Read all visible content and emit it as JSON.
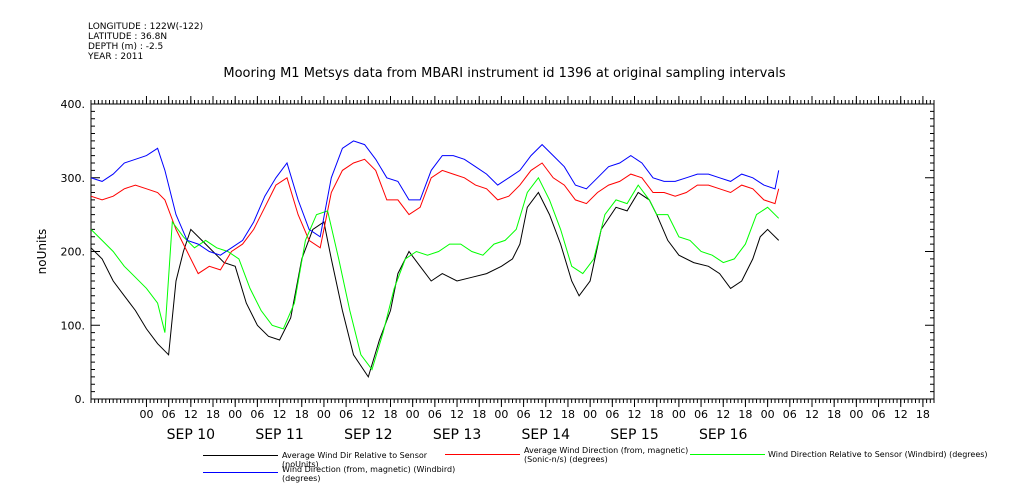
{
  "meta": {
    "longitude": "LONGITUDE : 122W(-122)",
    "latitude": "LATITUDE : 36.8N",
    "depth": "DEPTH (m) : -2.5",
    "year": "YEAR : 2011"
  },
  "chart_data": {
    "type": "line",
    "title": "Mooring M1 Metsys data from MBARI instrument id 1396 at original sampling intervals",
    "ylabel": "noUnits",
    "xlabel": "",
    "ylim": [
      0,
      400
    ],
    "yticks": [
      0,
      100,
      200,
      300,
      400
    ],
    "ytick_labels": [
      "0.",
      "100.",
      "200.",
      "300.",
      "400."
    ],
    "xlim_hours": [
      -15,
      213
    ],
    "hour_ticks": [
      0,
      6,
      12,
      18,
      24,
      30,
      36,
      42,
      48,
      54,
      60,
      66,
      72,
      78,
      84,
      90,
      96,
      102,
      108,
      114,
      120,
      126,
      132,
      138,
      144,
      150,
      156,
      162,
      168,
      174,
      180,
      186,
      192,
      198,
      204,
      210
    ],
    "hour_tick_labels": [
      "00",
      "06",
      "12",
      "18",
      "00",
      "06",
      "12",
      "18",
      "00",
      "06",
      "12",
      "18",
      "00",
      "06",
      "12",
      "18",
      "00",
      "06",
      "12",
      "18",
      "00",
      "06",
      "12",
      "18",
      "00",
      "06",
      "12",
      "18",
      "00",
      "06",
      "12",
      "18",
      "00",
      "06",
      "12",
      "18"
    ],
    "day_labels": [
      "SEP 10",
      "SEP 11",
      "SEP 12",
      "SEP 13",
      "SEP 14",
      "SEP 15",
      "SEP 16"
    ],
    "day_label_hours": [
      12,
      36,
      60,
      84,
      108,
      132,
      156
    ],
    "grid": false,
    "legend_position": "bottom",
    "series": [
      {
        "name": "Average Wind Dir Relative to Sensor (noUnits)",
        "color": "#000000",
        "points": [
          [
            -15,
            205
          ],
          [
            -12,
            190
          ],
          [
            -9,
            160
          ],
          [
            -6,
            140
          ],
          [
            -3,
            120
          ],
          [
            0,
            95
          ],
          [
            3,
            75
          ],
          [
            6,
            60
          ],
          [
            8,
            160
          ],
          [
            10,
            200
          ],
          [
            12,
            230
          ],
          [
            15,
            215
          ],
          [
            18,
            200
          ],
          [
            21,
            185
          ],
          [
            24,
            180
          ],
          [
            27,
            130
          ],
          [
            30,
            100
          ],
          [
            33,
            85
          ],
          [
            36,
            80
          ],
          [
            39,
            110
          ],
          [
            42,
            190
          ],
          [
            45,
            230
          ],
          [
            48,
            240
          ],
          [
            50,
            190
          ],
          [
            53,
            120
          ],
          [
            56,
            60
          ],
          [
            60,
            30
          ],
          [
            63,
            80
          ],
          [
            66,
            120
          ],
          [
            68,
            170
          ],
          [
            71,
            200
          ],
          [
            74,
            180
          ],
          [
            77,
            160
          ],
          [
            80,
            170
          ],
          [
            84,
            160
          ],
          [
            88,
            165
          ],
          [
            92,
            170
          ],
          [
            96,
            180
          ],
          [
            99,
            190
          ],
          [
            101,
            210
          ],
          [
            103,
            260
          ],
          [
            106,
            280
          ],
          [
            109,
            250
          ],
          [
            112,
            210
          ],
          [
            115,
            160
          ],
          [
            117,
            140
          ],
          [
            120,
            160
          ],
          [
            123,
            230
          ],
          [
            127,
            260
          ],
          [
            130,
            255
          ],
          [
            133,
            280
          ],
          [
            136,
            270
          ],
          [
            138,
            250
          ],
          [
            141,
            215
          ],
          [
            144,
            195
          ],
          [
            148,
            185
          ],
          [
            152,
            180
          ],
          [
            155,
            170
          ],
          [
            158,
            150
          ],
          [
            161,
            160
          ],
          [
            164,
            190
          ],
          [
            166,
            220
          ],
          [
            168,
            230
          ],
          [
            171,
            215
          ]
        ]
      },
      {
        "name": "Average Wind Direction (from, magnetic) (Sonic-n/s) (degrees)",
        "color": "#ff0000",
        "points": [
          [
            -15,
            275
          ],
          [
            -12,
            270
          ],
          [
            -9,
            275
          ],
          [
            -6,
            285
          ],
          [
            -3,
            290
          ],
          [
            0,
            285
          ],
          [
            3,
            280
          ],
          [
            5,
            270
          ],
          [
            8,
            230
          ],
          [
            11,
            200
          ],
          [
            14,
            170
          ],
          [
            17,
            180
          ],
          [
            20,
            175
          ],
          [
            23,
            200
          ],
          [
            26,
            210
          ],
          [
            29,
            230
          ],
          [
            32,
            260
          ],
          [
            35,
            290
          ],
          [
            38,
            300
          ],
          [
            41,
            250
          ],
          [
            44,
            215
          ],
          [
            47,
            205
          ],
          [
            50,
            280
          ],
          [
            53,
            310
          ],
          [
            56,
            320
          ],
          [
            59,
            325
          ],
          [
            62,
            310
          ],
          [
            65,
            270
          ],
          [
            68,
            270
          ],
          [
            71,
            250
          ],
          [
            74,
            260
          ],
          [
            77,
            300
          ],
          [
            80,
            310
          ],
          [
            83,
            305
          ],
          [
            86,
            300
          ],
          [
            89,
            290
          ],
          [
            92,
            285
          ],
          [
            95,
            270
          ],
          [
            98,
            275
          ],
          [
            101,
            290
          ],
          [
            104,
            310
          ],
          [
            107,
            320
          ],
          [
            110,
            300
          ],
          [
            113,
            290
          ],
          [
            116,
            270
          ],
          [
            119,
            265
          ],
          [
            122,
            280
          ],
          [
            125,
            290
          ],
          [
            128,
            295
          ],
          [
            131,
            305
          ],
          [
            134,
            300
          ],
          [
            137,
            280
          ],
          [
            140,
            280
          ],
          [
            143,
            275
          ],
          [
            146,
            280
          ],
          [
            149,
            290
          ],
          [
            152,
            290
          ],
          [
            155,
            285
          ],
          [
            158,
            280
          ],
          [
            161,
            290
          ],
          [
            164,
            285
          ],
          [
            167,
            270
          ],
          [
            170,
            265
          ],
          [
            171,
            285
          ]
        ]
      },
      {
        "name": "Wind Direction Relative to Sensor (Windbird) (degrees)",
        "color": "#00ff00",
        "points": [
          [
            -15,
            230
          ],
          [
            -12,
            215
          ],
          [
            -9,
            200
          ],
          [
            -6,
            180
          ],
          [
            -3,
            165
          ],
          [
            0,
            150
          ],
          [
            3,
            130
          ],
          [
            5,
            90
          ],
          [
            7,
            240
          ],
          [
            10,
            220
          ],
          [
            13,
            205
          ],
          [
            16,
            215
          ],
          [
            19,
            205
          ],
          [
            22,
            200
          ],
          [
            25,
            190
          ],
          [
            28,
            150
          ],
          [
            31,
            120
          ],
          [
            34,
            100
          ],
          [
            37,
            95
          ],
          [
            40,
            130
          ],
          [
            43,
            215
          ],
          [
            46,
            250
          ],
          [
            49,
            255
          ],
          [
            52,
            190
          ],
          [
            55,
            120
          ],
          [
            58,
            60
          ],
          [
            61,
            40
          ],
          [
            64,
            90
          ],
          [
            67,
            150
          ],
          [
            70,
            190
          ],
          [
            73,
            200
          ],
          [
            76,
            195
          ],
          [
            79,
            200
          ],
          [
            82,
            210
          ],
          [
            85,
            210
          ],
          [
            88,
            200
          ],
          [
            91,
            195
          ],
          [
            94,
            210
          ],
          [
            97,
            215
          ],
          [
            100,
            230
          ],
          [
            103,
            280
          ],
          [
            106,
            300
          ],
          [
            109,
            270
          ],
          [
            112,
            230
          ],
          [
            115,
            180
          ],
          [
            118,
            170
          ],
          [
            121,
            190
          ],
          [
            124,
            250
          ],
          [
            127,
            270
          ],
          [
            130,
            265
          ],
          [
            133,
            290
          ],
          [
            136,
            270
          ],
          [
            138,
            250
          ],
          [
            141,
            250
          ],
          [
            144,
            220
          ],
          [
            147,
            215
          ],
          [
            150,
            200
          ],
          [
            153,
            195
          ],
          [
            156,
            185
          ],
          [
            159,
            190
          ],
          [
            162,
            210
          ],
          [
            165,
            250
          ],
          [
            168,
            260
          ],
          [
            171,
            245
          ]
        ]
      },
      {
        "name": "Wind Direction (from, magnetic) (Windbird) (degrees)",
        "color": "#0000ff",
        "points": [
          [
            -15,
            300
          ],
          [
            -12,
            295
          ],
          [
            -9,
            305
          ],
          [
            -6,
            320
          ],
          [
            -3,
            325
          ],
          [
            0,
            330
          ],
          [
            3,
            340
          ],
          [
            5,
            310
          ],
          [
            8,
            250
          ],
          [
            11,
            215
          ],
          [
            14,
            210
          ],
          [
            17,
            200
          ],
          [
            20,
            195
          ],
          [
            23,
            205
          ],
          [
            26,
            215
          ],
          [
            29,
            240
          ],
          [
            32,
            275
          ],
          [
            35,
            300
          ],
          [
            38,
            320
          ],
          [
            41,
            270
          ],
          [
            44,
            230
          ],
          [
            47,
            220
          ],
          [
            50,
            300
          ],
          [
            53,
            340
          ],
          [
            56,
            350
          ],
          [
            59,
            345
          ],
          [
            62,
            325
          ],
          [
            65,
            300
          ],
          [
            68,
            295
          ],
          [
            71,
            270
          ],
          [
            74,
            270
          ],
          [
            77,
            310
          ],
          [
            80,
            330
          ],
          [
            83,
            330
          ],
          [
            86,
            325
          ],
          [
            89,
            315
          ],
          [
            92,
            305
          ],
          [
            95,
            290
          ],
          [
            98,
            300
          ],
          [
            101,
            310
          ],
          [
            104,
            330
          ],
          [
            107,
            345
          ],
          [
            110,
            330
          ],
          [
            113,
            315
          ],
          [
            116,
            290
          ],
          [
            119,
            285
          ],
          [
            122,
            300
          ],
          [
            125,
            315
          ],
          [
            128,
            320
          ],
          [
            131,
            330
          ],
          [
            134,
            320
          ],
          [
            137,
            300
          ],
          [
            140,
            295
          ],
          [
            143,
            295
          ],
          [
            146,
            300
          ],
          [
            149,
            305
          ],
          [
            152,
            305
          ],
          [
            155,
            300
          ],
          [
            158,
            295
          ],
          [
            161,
            305
          ],
          [
            164,
            300
          ],
          [
            167,
            290
          ],
          [
            170,
            285
          ],
          [
            171,
            310
          ]
        ]
      }
    ]
  }
}
